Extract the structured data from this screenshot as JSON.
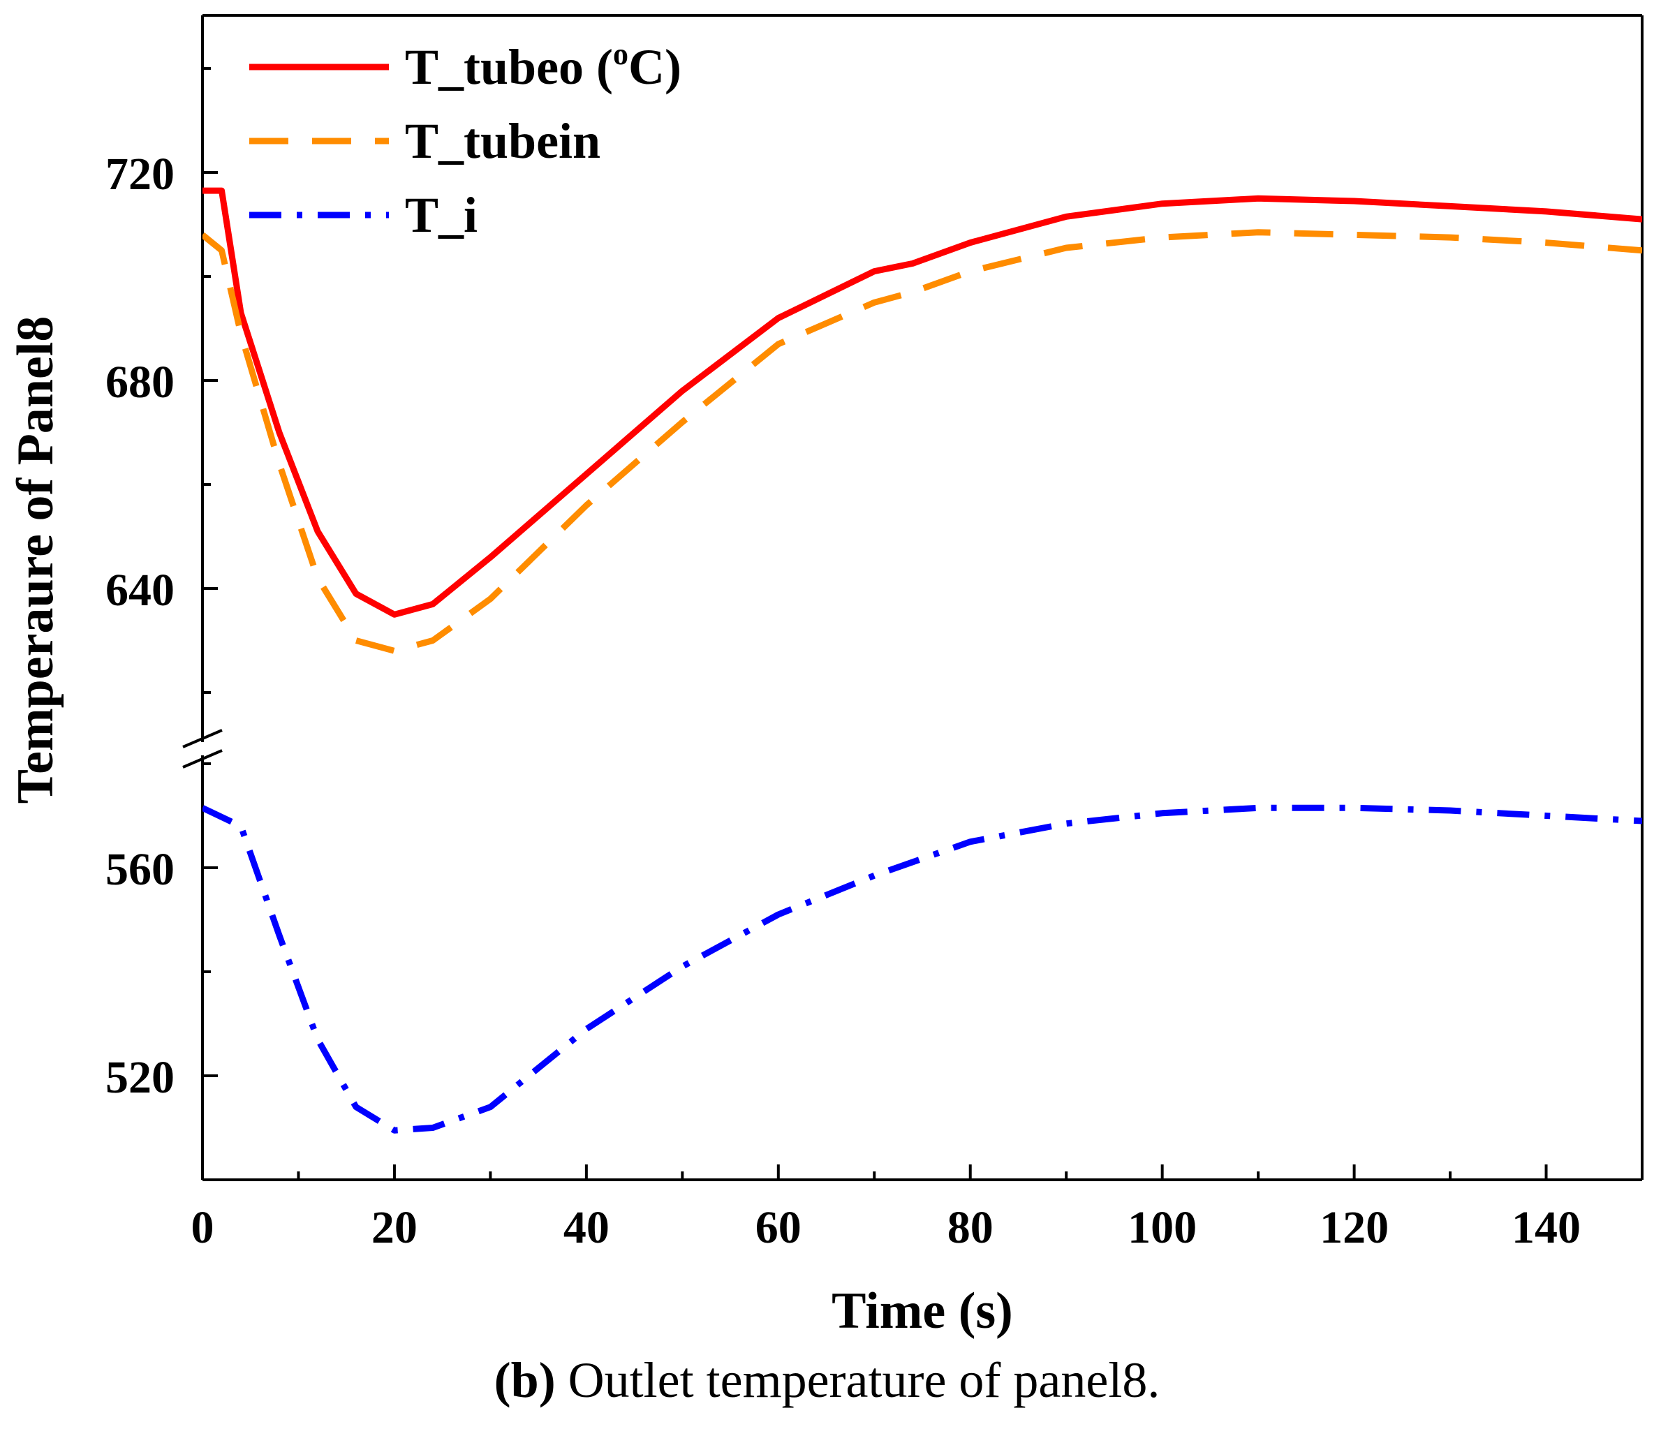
{
  "chart_data": {
    "type": "line",
    "xlabel": "Time (s)",
    "ylabel": "Temperaure of Panel8",
    "xlim": [
      0,
      150
    ],
    "xticks": [
      0,
      20,
      40,
      60,
      80,
      100,
      120,
      140
    ],
    "y_axis_break": {
      "lower_range": [
        504,
        582
      ],
      "upper_range": [
        606,
        742
      ]
    },
    "yticks": [
      520,
      560,
      640,
      680,
      720
    ],
    "legend_position": "top-left",
    "grid": false,
    "series": [
      {
        "name": "T_tubeo",
        "unit_label": "(oC)",
        "color": "#ff0000",
        "style": "solid",
        "x": [
          0,
          2,
          4,
          8,
          12,
          16,
          20,
          24,
          30,
          40,
          50,
          60,
          70,
          74,
          80,
          90,
          100,
          110,
          120,
          130,
          140,
          150
        ],
        "y": [
          716.5,
          716.5,
          693,
          670,
          651,
          639,
          635,
          637,
          646,
          662,
          678,
          692,
          701,
          702.5,
          706.5,
          711.5,
          714,
          715,
          714.5,
          713.5,
          712.5,
          711
        ]
      },
      {
        "name": "T_tubein",
        "color": "#ff8c00",
        "style": "dashed",
        "x": [
          0,
          2,
          4,
          8,
          12,
          16,
          20,
          24,
          30,
          40,
          50,
          60,
          70,
          74,
          80,
          90,
          100,
          110,
          120,
          130,
          140,
          150
        ],
        "y": [
          708,
          705,
          689,
          664,
          642,
          630,
          628,
          630,
          638,
          656,
          672,
          687,
          695,
          697,
          701,
          705.5,
          707.5,
          708.5,
          708,
          707.5,
          706.5,
          705
        ]
      },
      {
        "name": "T_i",
        "color": "#0000ff",
        "style": "dashdot",
        "x": [
          0,
          4,
          8,
          12,
          16,
          20,
          24,
          30,
          40,
          50,
          60,
          70,
          80,
          90,
          100,
          110,
          120,
          130,
          140,
          150
        ],
        "y": [
          571.5,
          568,
          547,
          527,
          514,
          509.5,
          510,
          514,
          529,
          541,
          551,
          558.5,
          565,
          568.5,
          570.5,
          571.5,
          571.5,
          571,
          570,
          569
        ]
      }
    ]
  },
  "caption": {
    "label": "(b)",
    "text": " Outlet temperature of panel8."
  }
}
